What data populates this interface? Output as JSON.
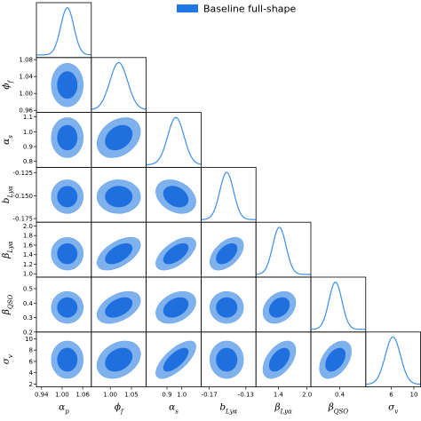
{
  "legend": {
    "label": "Baseline full-shape",
    "color": "#1f78e6"
  },
  "chart_data": {
    "type": "corner",
    "grid": false,
    "legend_position": "top-right",
    "colors": {
      "inner": "#1f6fdf",
      "outer": "#7fb2ec",
      "pdf_line": "#3b8ee8"
    },
    "parameters": [
      {
        "label": "α_p",
        "sub": "p",
        "mean": 1.015,
        "sigma": 0.019,
        "range": [
          0.925,
          1.085
        ],
        "ticks": [
          0.94,
          1.0,
          1.06
        ],
        "tick_labels": [
          "0.94",
          "1.00",
          "1.06"
        ]
      },
      {
        "label": "ϕ_f",
        "sub": "f",
        "mean": 1.02,
        "sigma": 0.021,
        "range": [
          0.955,
          1.085
        ],
        "ticks": [
          0.96,
          1.0,
          1.04,
          1.08
        ],
        "tick_labels": [
          "0.96",
          "1.00",
          "1.04",
          "1.08"
        ],
        "x_ticks": [
          1.0,
          1.05
        ],
        "x_tick_labels": [
          "1.00",
          "1.05"
        ]
      },
      {
        "label": "α_s",
        "sub": "s",
        "mean": 0.96,
        "sigma": 0.055,
        "range": [
          0.76,
          1.13
        ],
        "ticks": [
          0.8,
          0.9,
          1.0,
          1.1
        ],
        "tick_labels": [
          "0.8",
          "0.9",
          "1.0",
          "1.1"
        ],
        "x_ticks": [
          0.9,
          1.0
        ],
        "x_tick_labels": [
          "0.9",
          "1.0"
        ]
      },
      {
        "label": "b_Lya",
        "sub": "Lyα",
        "mean": -0.151,
        "sigma": 0.0075,
        "range": [
          -0.179,
          -0.119
        ],
        "ticks": [
          -0.125,
          -0.15,
          -0.175
        ],
        "tick_labels": [
          "-0.125",
          "-0.150",
          "-0.175"
        ],
        "x_ticks": [
          -0.17,
          -0.13
        ],
        "x_tick_labels": [
          "-0.17",
          "-0.13"
        ]
      },
      {
        "label": "β_Lya",
        "sub": "Lyα",
        "mean": 1.42,
        "sigma": 0.14,
        "range": [
          0.93,
          2.08
        ],
        "ticks": [
          1.0,
          1.2,
          1.4,
          1.6,
          1.8,
          2.0
        ],
        "tick_labels": [
          "1.0",
          "1.2",
          "1.4",
          "1.6",
          "1.8",
          "2.0"
        ],
        "x_ticks": [
          1.4,
          2.0
        ],
        "x_tick_labels": [
          "1.4",
          "2.0"
        ]
      },
      {
        "label": "β_QSO",
        "sub": "QSO",
        "mean": 0.37,
        "sigma": 0.045,
        "range": [
          0.2,
          0.58
        ],
        "ticks": [
          0.2,
          0.3,
          0.4,
          0.5
        ],
        "tick_labels": [
          "0.2",
          "0.3",
          "0.4",
          "0.5"
        ],
        "x_ticks": [
          0.4
        ],
        "x_tick_labels": [
          "0.4"
        ]
      },
      {
        "label": "σ_v",
        "sub": "v",
        "mean": 6.3,
        "sigma": 1.35,
        "range": [
          1.5,
          11.2
        ],
        "ticks": [
          2,
          4,
          6,
          8,
          10
        ],
        "tick_labels": [
          "2",
          "4",
          "6",
          "8",
          "10"
        ],
        "x_ticks": [
          6,
          10
        ],
        "x_tick_labels": [
          "6",
          "10"
        ]
      }
    ],
    "correlations": [
      [
        1,
        0,
        0,
        0,
        0,
        0,
        0
      ],
      [
        0,
        1,
        0.3,
        0,
        0.55,
        0.45,
        0.3
      ],
      [
        0,
        0.3,
        1,
        -0.3,
        0.6,
        0.35,
        0.7
      ],
      [
        0,
        0,
        -0.3,
        1,
        0.5,
        0,
        0
      ],
      [
        0,
        0.55,
        0.6,
        0.5,
        1,
        0.3,
        0.5
      ],
      [
        0,
        0.45,
        0.35,
        0,
        0.3,
        1,
        0.45
      ],
      [
        0,
        0.3,
        0.7,
        0,
        0.5,
        0.45,
        1
      ]
    ],
    "contour_levels": [
      0.68,
      0.95
    ]
  }
}
